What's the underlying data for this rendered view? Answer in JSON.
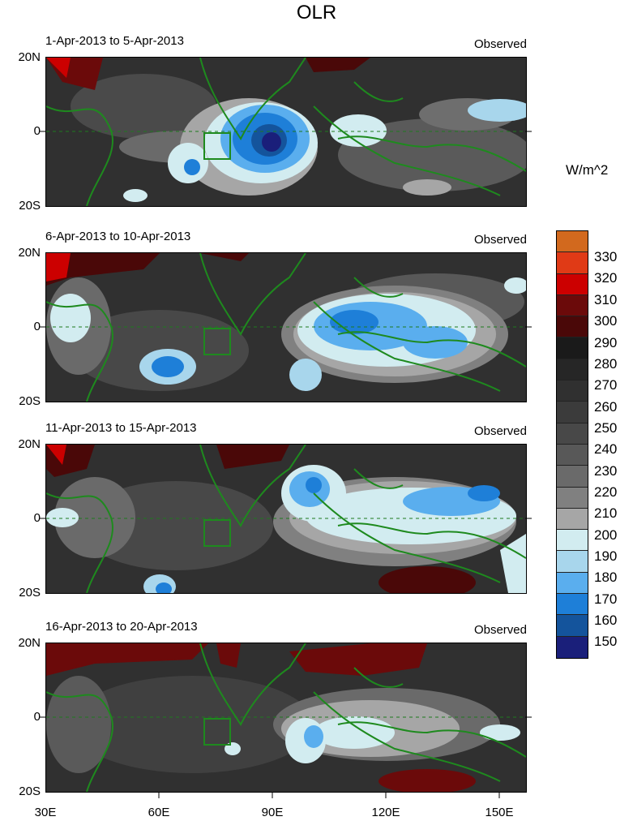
{
  "title": "OLR",
  "units": "W/m^2",
  "panels": [
    {
      "period": "1-Apr-2013 to 5-Apr-2013",
      "label": "Observed"
    },
    {
      "period": "6-Apr-2013 to 10-Apr-2013",
      "label": "Observed"
    },
    {
      "period": "11-Apr-2013 to 15-Apr-2013",
      "label": "Observed"
    },
    {
      "period": "16-Apr-2013 to 20-Apr-2013",
      "label": "Observed"
    }
  ],
  "lat_labels": [
    "20N",
    "0",
    "20S"
  ],
  "lon_labels": [
    "30E",
    "60E",
    "90E",
    "120E",
    "150E"
  ],
  "colorbar": {
    "labels": [
      "330",
      "320",
      "310",
      "300",
      "290",
      "280",
      "270",
      "260",
      "250",
      "240",
      "230",
      "220",
      "210",
      "200",
      "190",
      "180",
      "170",
      "160",
      "150"
    ],
    "colors": [
      "#d2691e",
      "#e03a16",
      "#cc0000",
      "#6b0a0a",
      "#4a0808",
      "#1a1a1a",
      "#262626",
      "#303030",
      "#3b3b3b",
      "#484848",
      "#585858",
      "#6a6a6a",
      "#808080",
      "#a6a6a6",
      "#d2ecf0",
      "#a8d6ec",
      "#5aaeee",
      "#1e7fd8",
      "#14549c",
      "#1a1f7a"
    ]
  }
}
